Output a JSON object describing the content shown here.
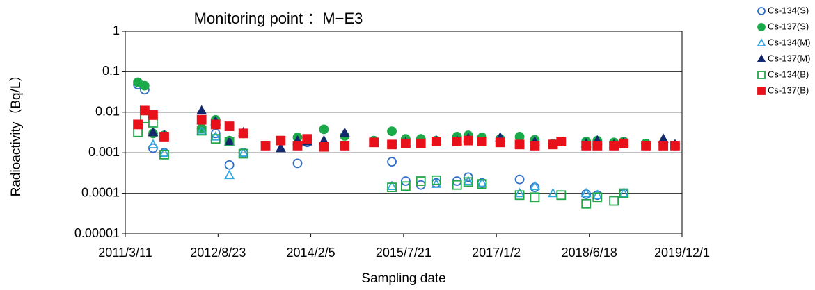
{
  "chart_data": {
    "type": "scatter",
    "title": "Monitoring point ：M−E3",
    "x_label": "Sampling date",
    "y_label": "Radioactivity（Bq/L）",
    "log_y": true,
    "grid": true,
    "legend": "right",
    "xlim": [
      "2011-03-11",
      "2019-12-01"
    ],
    "xticks": [
      {
        "value": "2011-03-11",
        "label": "2011/3/11"
      },
      {
        "value": "2012-08-23",
        "label": "2012/8/23"
      },
      {
        "value": "2014-02-05",
        "label": "2014/2/5"
      },
      {
        "value": "2015-07-21",
        "label": "2015/7/21"
      },
      {
        "value": "2017-01-02",
        "label": "2017/1/2"
      },
      {
        "value": "2018-06-18",
        "label": "2018/6/18"
      },
      {
        "value": "2019-12-01",
        "label": "2019/12/1"
      }
    ],
    "ylim": [
      1e-05,
      1
    ],
    "yticks": [
      1e-05,
      0.0001,
      0.001,
      0.01,
      0.1,
      1
    ],
    "x": [
      "2011-05-22",
      "2011-06-30",
      "2011-08-17",
      "2011-10-20",
      "2012-05-21",
      "2012-08-09",
      "2012-10-27",
      "2013-01-15",
      "2013-05-22",
      "2013-08-17",
      "2013-11-21",
      "2014-01-15",
      "2014-04-21",
      "2014-08-18",
      "2015-02-01",
      "2015-05-15",
      "2015-08-02",
      "2015-10-28",
      "2016-01-24",
      "2016-05-22",
      "2016-07-25",
      "2016-10-12",
      "2017-01-24",
      "2017-05-15",
      "2017-08-10",
      "2017-11-22",
      "2018-01-08",
      "2018-05-31",
      "2018-08-03",
      "2018-11-06",
      "2019-01-01",
      "2019-05-08",
      "2019-08-16",
      "2019-10-22"
    ],
    "series": [
      {
        "name": "Cs-134(S)",
        "color": "#2f6fc6",
        "marker": "circle",
        "filled": false,
        "values": [
          0.048,
          0.036,
          0.0013,
          0.001,
          0.004,
          0.003,
          0.0005,
          0.001,
          null,
          null,
          0.00055,
          0.0018,
          null,
          null,
          null,
          0.0006,
          0.0002,
          0.00016,
          0.00018,
          0.0002,
          0.00025,
          0.00018,
          null,
          0.00022,
          0.00014,
          null,
          null,
          9.5e-05,
          9e-05,
          null,
          0.0001,
          null,
          null,
          null
        ]
      },
      {
        "name": "Cs-137(S)",
        "color": "#1aaa4a",
        "marker": "circle",
        "filled": true,
        "values": [
          0.055,
          0.045,
          0.003,
          0.0027,
          0.004,
          0.0065,
          0.002,
          0.003,
          null,
          null,
          0.0024,
          null,
          0.0038,
          0.0026,
          0.002,
          0.0034,
          0.0022,
          0.0022,
          0.002,
          0.0025,
          0.0027,
          0.0024,
          0.0022,
          0.0025,
          0.0021,
          0.0017,
          0.0019,
          0.0019,
          0.002,
          0.0018,
          0.0019,
          0.0017,
          0.0016,
          0.0015
        ]
      },
      {
        "name": "Cs-134(M)",
        "color": "#33a8e0",
        "marker": "triangle",
        "filled": false,
        "values": [
          null,
          null,
          0.0016,
          0.001,
          0.0035,
          0.0025,
          0.00028,
          0.001,
          null,
          null,
          null,
          null,
          null,
          null,
          null,
          0.00015,
          null,
          null,
          0.00017,
          null,
          0.0002,
          0.00018,
          null,
          0.0001,
          0.00015,
          0.0001,
          null,
          0.0001,
          9e-05,
          null,
          0.0001,
          null,
          null,
          null
        ]
      },
      {
        "name": "Cs-137(M)",
        "color": "#14286e",
        "marker": "triangle",
        "filled": true,
        "values": [
          null,
          null,
          0.0032,
          0.0027,
          0.011,
          0.006,
          0.0019,
          0.0032,
          null,
          0.0013,
          0.002,
          0.0019,
          0.002,
          0.0031,
          0.0018,
          null,
          0.0018,
          null,
          0.002,
          0.002,
          0.0023,
          null,
          0.0024,
          null,
          0.0019,
          0.0016,
          null,
          0.0017,
          0.002,
          0.0016,
          0.0018,
          null,
          0.0022,
          0.0016
        ]
      },
      {
        "name": "Cs-134(B)",
        "color": "#22a84a",
        "marker": "square",
        "filled": false,
        "values": [
          0.0032,
          0.007,
          0.0055,
          0.0009,
          0.0035,
          0.0022,
          0.0019,
          0.00095,
          null,
          null,
          null,
          null,
          null,
          null,
          null,
          0.00014,
          0.00015,
          0.0002,
          0.00021,
          0.00016,
          0.00019,
          0.00017,
          null,
          9e-05,
          8e-05,
          null,
          9e-05,
          5.5e-05,
          8e-05,
          6.5e-05,
          0.0001,
          null,
          null,
          null
        ]
      },
      {
        "name": "Cs-137(B)",
        "color": "#e8111a",
        "marker": "square",
        "filled": true,
        "values": [
          0.005,
          0.011,
          0.0085,
          0.0025,
          0.0065,
          0.005,
          0.0045,
          0.003,
          0.0015,
          0.002,
          0.0015,
          0.0022,
          0.0014,
          0.0015,
          0.0018,
          0.0016,
          0.0017,
          0.0017,
          0.0019,
          0.0019,
          0.002,
          0.0019,
          0.0018,
          0.0016,
          0.0015,
          0.0016,
          0.0019,
          0.0015,
          0.0015,
          0.0015,
          0.0017,
          0.0015,
          0.0015,
          0.0015
        ]
      }
    ]
  }
}
